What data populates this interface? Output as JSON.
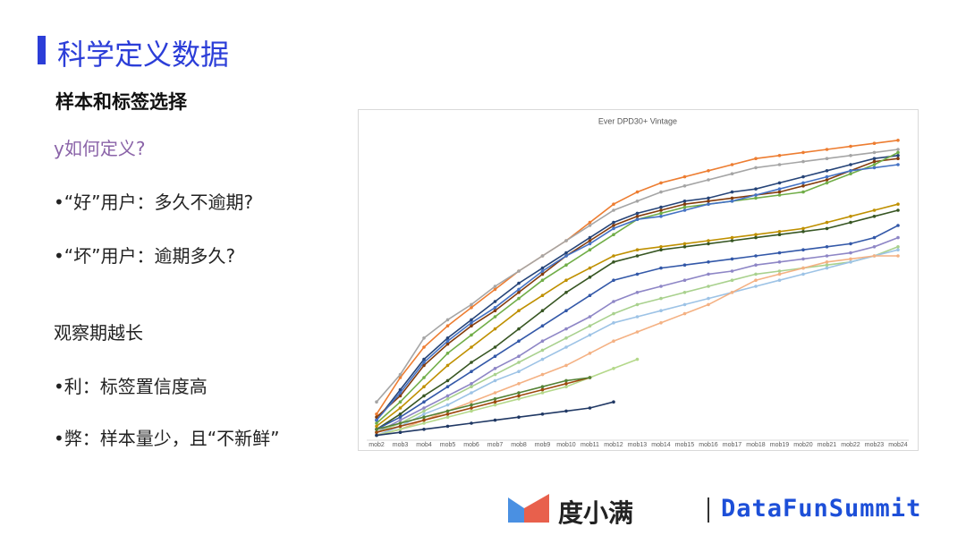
{
  "slide": {
    "title": "科学定义数据",
    "subtitle": "样本和标签选择",
    "question": "y如何定义?",
    "bullets": [
      "•“好”用户：多久不逾期?",
      "•“坏”用户：逾期多久?",
      "观察期越长",
      "•利：标签置信度高",
      "•弊：样本量少，且“不新鲜”"
    ],
    "brand": "度小满",
    "event": "DataFunSummit"
  },
  "chart_data": {
    "type": "line",
    "title": "Ever DPD30+ Vintage",
    "categories": [
      "mob2",
      "mob3",
      "mob4",
      "mob5",
      "mob6",
      "mob7",
      "mob8",
      "mob9",
      "mob10",
      "mob11",
      "mob12",
      "mob13",
      "mob14",
      "mob15",
      "mob16",
      "mob17",
      "mob18",
      "mob19",
      "mob20",
      "mob21",
      "mob22",
      "mob23",
      "mob24"
    ],
    "ylim": [
      0,
      100
    ],
    "series": [
      {
        "color": "#ed7d31",
        "values": [
          8,
          20,
          30,
          37,
          43,
          49,
          55,
          60,
          65,
          71,
          77,
          81,
          84,
          86,
          88,
          90,
          92,
          93,
          94,
          95,
          96,
          97,
          98
        ]
      },
      {
        "color": "#a5a5a5",
        "values": [
          12,
          21,
          33,
          39,
          44,
          50,
          55,
          60,
          65,
          70,
          75,
          78,
          81,
          83,
          85,
          87,
          89,
          90,
          91,
          92,
          93,
          94,
          95
        ]
      },
      {
        "color": "#264478",
        "values": [
          6,
          16,
          26,
          33,
          39,
          45,
          51,
          56,
          61,
          66,
          71,
          74,
          76,
          78,
          79,
          81,
          82,
          84,
          86,
          88,
          90,
          92,
          93
        ]
      },
      {
        "color": "#843c0c",
        "values": [
          7,
          14,
          24,
          31,
          37,
          42,
          48,
          54,
          60,
          65,
          70,
          73,
          75,
          77,
          78,
          79,
          80,
          81,
          83,
          85,
          88,
          91,
          92
        ]
      },
      {
        "color": "#70ad47",
        "values": [
          5,
          12,
          20,
          28,
          34,
          40,
          46,
          52,
          57,
          62,
          67,
          72,
          74,
          76,
          77,
          78,
          79,
          80,
          81,
          84,
          87,
          90,
          94
        ]
      },
      {
        "color": "#4472c4",
        "values": [
          6,
          15,
          25,
          32,
          38,
          43,
          49,
          55,
          60,
          64,
          69,
          72,
          73,
          75,
          77,
          78,
          80,
          82,
          84,
          86,
          88,
          89,
          90
        ]
      },
      {
        "color": "#bf9000",
        "values": [
          4,
          10,
          17,
          24,
          30,
          36,
          42,
          47,
          52,
          56,
          60,
          62,
          63,
          64,
          65,
          66,
          67,
          68,
          69,
          71,
          73,
          75,
          77
        ]
      },
      {
        "color": "#375623",
        "values": [
          3,
          8,
          14,
          19,
          25,
          30,
          36,
          42,
          48,
          53,
          58,
          60,
          62,
          63,
          64,
          65,
          66,
          67,
          68,
          69,
          71,
          73,
          75
        ]
      },
      {
        "color": "#3358a8",
        "values": [
          3,
          7,
          12,
          17,
          22,
          27,
          32,
          37,
          42,
          47,
          52,
          54,
          56,
          57,
          58,
          59,
          60,
          61,
          62,
          63,
          64,
          66,
          70
        ]
      },
      {
        "color": "#8e86c6",
        "values": [
          2,
          6,
          10,
          14,
          18,
          23,
          27,
          32,
          36,
          40,
          45,
          48,
          50,
          52,
          54,
          55,
          57,
          58,
          59,
          60,
          61,
          63,
          66
        ]
      },
      {
        "color": "#a9d18e",
        "values": [
          2,
          5,
          9,
          13,
          17,
          21,
          25,
          29,
          33,
          37,
          41,
          44,
          46,
          48,
          50,
          52,
          54,
          55,
          56,
          57,
          58,
          60,
          63
        ]
      },
      {
        "color": "#9dc3e6",
        "values": [
          1,
          4,
          8,
          11,
          15,
          19,
          22,
          26,
          30,
          34,
          38,
          40,
          42,
          44,
          46,
          48,
          50,
          52,
          54,
          56,
          58,
          60,
          62
        ]
      },
      {
        "color": "#f4b183",
        "values": [
          1,
          3,
          6,
          9,
          12,
          15,
          18,
          21,
          24,
          28,
          32,
          35,
          38,
          41,
          44,
          48,
          52,
          54,
          56,
          58,
          59,
          60,
          60
        ]
      },
      {
        "color": "#b4d88a",
        "values": [
          1,
          3,
          5,
          7,
          9,
          11,
          13,
          15,
          17,
          20,
          23,
          26,
          null,
          null,
          null,
          null,
          null,
          null,
          null,
          null,
          null,
          null,
          null
        ]
      },
      {
        "color": "#9e480e",
        "values": [
          2,
          4,
          6,
          8,
          10,
          12,
          14,
          16,
          18,
          20,
          null,
          null,
          null,
          null,
          null,
          null,
          null,
          null,
          null,
          null,
          null,
          null,
          null
        ]
      },
      {
        "color": "#548235",
        "values": [
          3,
          5,
          7,
          9,
          11,
          13,
          15,
          17,
          19,
          20,
          null,
          null,
          null,
          null,
          null,
          null,
          null,
          null,
          null,
          null,
          null,
          null,
          null
        ]
      },
      {
        "color": "#203864",
        "values": [
          1,
          2,
          3,
          4,
          5,
          6,
          7,
          8,
          9,
          10,
          12,
          null,
          null,
          null,
          null,
          null,
          null,
          null,
          null,
          null,
          null,
          null,
          null
        ]
      }
    ]
  }
}
